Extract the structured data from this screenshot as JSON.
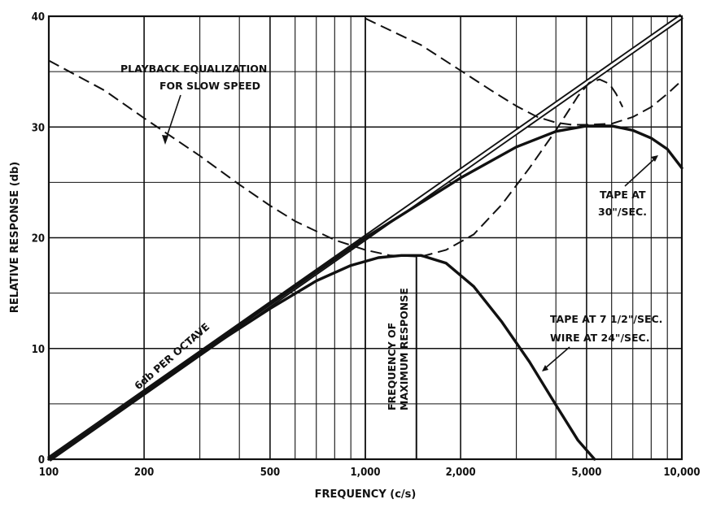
{
  "chart_data": {
    "type": "line",
    "title": "",
    "xlabel": "FREQUENCY (c/s)",
    "ylabel": "RELATIVE RESPONSE (db)",
    "x_scale": "log",
    "xlim": [
      100,
      10000
    ],
    "ylim": [
      0,
      40
    ],
    "grid": true,
    "x_ticks": [
      100,
      200,
      500,
      1000,
      2000,
      5000,
      10000
    ],
    "x_tick_labels": [
      "100",
      "200",
      "500",
      "1,000",
      "2,000",
      "5,000",
      "10,000"
    ],
    "y_ticks": [
      0,
      10,
      20,
      30,
      40
    ],
    "y_tick_labels": [
      "0",
      "10",
      "20",
      "30",
      "40"
    ],
    "series": [
      {
        "name": "6db PER OCTAVE",
        "style": "double-solid",
        "x": [
          100,
          1000,
          10000
        ],
        "y": [
          0,
          20,
          40
        ]
      },
      {
        "name": "TAPE AT 30\"/SEC.",
        "style": "bold-solid",
        "x": [
          100,
          500,
          1000,
          2000,
          3000,
          4000,
          5000,
          6000,
          7000,
          8000,
          9000,
          10000
        ],
        "y": [
          0,
          14,
          20,
          25.4,
          28.2,
          29.6,
          30.1,
          30.1,
          29.7,
          29.0,
          28.0,
          26.3
        ]
      },
      {
        "name": "TAPE AT 7 1/2\"/SEC. WIRE AT 24\"/SEC.",
        "style": "bold-solid",
        "x": [
          100,
          300,
          500,
          700,
          900,
          1100,
          1300,
          1500,
          1800,
          2200,
          2700,
          3300,
          4000,
          4700,
          5300
        ],
        "y": [
          0,
          9.5,
          13.6,
          16.1,
          17.5,
          18.2,
          18.4,
          18.4,
          17.7,
          15.6,
          12.4,
          8.8,
          4.9,
          1.7,
          0
        ]
      },
      {
        "name": "PLAYBACK EQUALIZATION FOR SLOW SPEED",
        "style": "dashed",
        "x": [
          100,
          150,
          200,
          300,
          400,
          500,
          600,
          800,
          1000,
          1200,
          1500,
          1800,
          2200,
          2700,
          3300,
          4000,
          4700,
          5100,
          5500,
          5900,
          6200,
          6500
        ],
        "y": [
          36,
          33.3,
          30.8,
          27.4,
          24.8,
          22.9,
          21.5,
          19.8,
          18.9,
          18.4,
          18.3,
          18.9,
          20.3,
          23,
          26.3,
          29.7,
          32.8,
          34,
          34.3,
          33.9,
          33,
          31.8
        ]
      },
      {
        "name": "",
        "style": "dashed",
        "x": [
          1000,
          1500,
          2000,
          2500,
          3000,
          3500,
          4000,
          4500,
          5000,
          6000,
          7000,
          8000,
          9000,
          10000
        ],
        "y": [
          39.8,
          37.4,
          35.1,
          33.3,
          31.9,
          30.9,
          30.4,
          30.2,
          30.2,
          30.3,
          30.9,
          31.8,
          33.0,
          34.2
        ]
      }
    ],
    "annotations": {
      "playback_line1": "PLAYBACK EQUALIZATION",
      "playback_line2": "FOR SLOW SPEED",
      "octave": "6db PER OCTAVE",
      "freq_line1": "FREQUENCY OF",
      "freq_line2": "MAXIMUM RESPONSE",
      "tape30_line1": "TAPE AT",
      "tape30_line2": "30\"/SEC.",
      "tape7_line1": "TAPE AT 7 1/2\"/SEC.",
      "tape7_line2": "WIRE AT 24\"/SEC."
    }
  }
}
